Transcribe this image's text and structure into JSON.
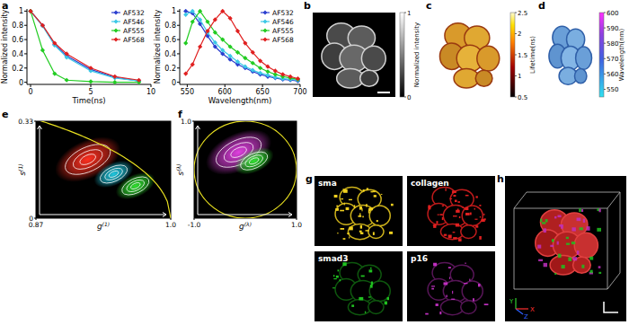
{
  "chart_data": [
    {
      "type": "line",
      "x_label": "Time(ns)",
      "y_label": "Normalized intensity",
      "x": [
        0,
        1,
        2,
        3,
        5,
        7,
        9
      ],
      "series": [
        {
          "name": "AF532",
          "color": "#2a3fcf",
          "values": [
            1,
            0.8,
            0.53,
            0.37,
            0.18,
            0.07,
            0.02
          ]
        },
        {
          "name": "AF546",
          "color": "#3cc8e6",
          "values": [
            1,
            0.79,
            0.52,
            0.35,
            0.16,
            0.06,
            0.02
          ]
        },
        {
          "name": "AF555",
          "color": "#22cc22",
          "values": [
            1,
            0.45,
            0.12,
            0.03,
            0.01,
            0,
            0
          ]
        },
        {
          "name": "AF568",
          "color": "#e02020",
          "values": [
            1,
            0.8,
            0.55,
            0.4,
            0.2,
            0.08,
            0.03
          ]
        }
      ],
      "xlim": [
        -0.3,
        10
      ],
      "xticks": [
        0,
        5,
        10
      ],
      "ylim": [
        -0.03,
        1.03
      ],
      "yticks": [
        0,
        0.2,
        0.4,
        0.6,
        0.8,
        1
      ],
      "legend": "upper right",
      "marker": "diamond"
    },
    {
      "type": "line",
      "x_label": "Wavelength(nm)",
      "y_label": "Normalized intensity",
      "x": [
        548,
        557,
        567,
        577,
        587,
        597,
        607,
        617,
        627,
        637,
        647,
        657,
        667,
        677,
        687,
        697
      ],
      "series": [
        {
          "name": "AF532",
          "color": "#2a3fcf",
          "values": [
            1,
            0.97,
            0.82,
            0.65,
            0.5,
            0.4,
            0.32,
            0.25,
            0.2,
            0.15,
            0.11,
            0.08,
            0.06,
            0.04,
            0.03,
            0.02
          ]
        },
        {
          "name": "AF546",
          "color": "#3cc8e6",
          "values": [
            0.95,
            1,
            0.88,
            0.7,
            0.56,
            0.45,
            0.37,
            0.29,
            0.22,
            0.17,
            0.13,
            0.1,
            0.07,
            0.05,
            0.04,
            0.03
          ]
        },
        {
          "name": "AF555",
          "color": "#22cc22",
          "values": [
            0.55,
            0.85,
            1,
            0.85,
            0.7,
            0.6,
            0.5,
            0.42,
            0.34,
            0.27,
            0.2,
            0.15,
            0.11,
            0.08,
            0.06,
            0.04
          ]
        },
        {
          "name": "AF568",
          "color": "#e02020",
          "values": [
            0.12,
            0.25,
            0.5,
            0.72,
            0.88,
            1,
            0.9,
            0.72,
            0.55,
            0.42,
            0.3,
            0.22,
            0.16,
            0.11,
            0.08,
            0.05
          ]
        }
      ],
      "xlim": [
        540,
        700
      ],
      "xticks": [
        550,
        600,
        650,
        700
      ],
      "ylim": [
        -0.03,
        1.03
      ],
      "yticks": [
        0,
        0.2,
        0.4,
        0.6,
        0.8,
        1
      ],
      "legend": "upper right",
      "marker": "diamond"
    }
  ],
  "panel_labels": [
    "a",
    "b",
    "c",
    "d",
    "e",
    "f",
    "g",
    "h"
  ],
  "images": [
    {
      "colorbar": {
        "label": "Normalized intensity",
        "range": [
          0,
          1
        ],
        "ticks": [
          0,
          1
        ]
      }
    },
    {
      "colorbar": {
        "label": "Lifetime(ns)",
        "range": [
          0.5,
          2.5
        ],
        "ticks": [
          0.5,
          1,
          1.5,
          2,
          2.5
        ]
      }
    },
    {
      "colorbar": {
        "label": "Wavelength(nm)",
        "range": [
          545,
          600
        ],
        "ticks": [
          550,
          560,
          570,
          580,
          590,
          600
        ]
      }
    }
  ],
  "phasors": [
    {
      "x_label": {
        "text": "g",
        "sup": "(1)"
      },
      "y_label": {
        "text": "s",
        "sup": "(1)"
      },
      "xlim": [
        0.87,
        1.0
      ],
      "ylim": [
        0,
        0.33
      ],
      "xticks": [
        0.87,
        {
          "value": 1,
          "label": "1.0"
        }
      ],
      "yticks": [
        0,
        0.33
      ],
      "clusters": [
        {
          "g": 0.92,
          "s": 0.2,
          "color": "#ff3020"
        },
        {
          "g": 0.945,
          "s": 0.15,
          "color": "#20c8e0"
        },
        {
          "g": 0.966,
          "s": 0.11,
          "color": "#30e030"
        }
      ]
    },
    {
      "x_label": {
        "text": "g",
        "sup": "(λ)"
      },
      "y_label": {
        "text": "s",
        "sup": "(λ)"
      },
      "xlim": [
        -1,
        1
      ],
      "ylim": [
        -1,
        1
      ],
      "xticks": [
        {
          "value": -1,
          "label": "-1.0"
        },
        {
          "value": 1,
          "label": "1.0"
        }
      ],
      "yticks": [
        {
          "value": 1,
          "label": "1.0"
        }
      ],
      "clusters": [
        {
          "g": -0.13,
          "s": 0.36,
          "color": "#e040e0"
        },
        {
          "g": 0.17,
          "s": 0.18,
          "color": "#30e030"
        }
      ]
    }
  ],
  "channels": [
    {
      "name": "sma",
      "color": "#f0d020"
    },
    {
      "name": "collagen",
      "color": "#e02020"
    },
    {
      "name": "smad3",
      "color": "#20c020"
    },
    {
      "name": "p16",
      "color": "#c030c0"
    }
  ],
  "axes_icon": [
    "Y",
    "Z",
    "X"
  ]
}
